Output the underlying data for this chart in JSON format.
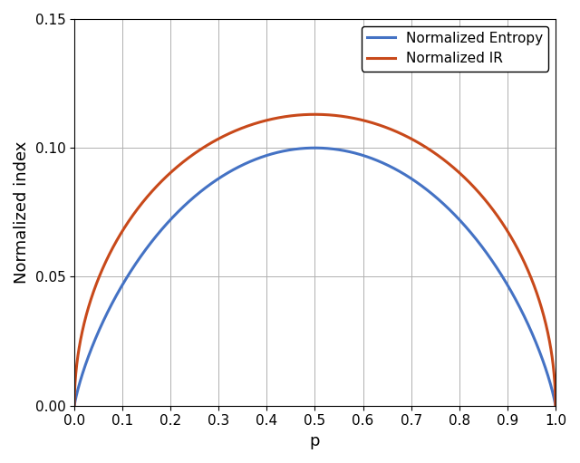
{
  "xlabel": "p",
  "ylabel": "Normalized index",
  "xlim": [
    0,
    1
  ],
  "ylim": [
    0,
    0.15
  ],
  "xticks": [
    0,
    0.1,
    0.2,
    0.3,
    0.4,
    0.5,
    0.6,
    0.7,
    0.8,
    0.9,
    1.0
  ],
  "yticks": [
    0,
    0.05,
    0.1,
    0.15
  ],
  "blue_color": "#4472C4",
  "orange_color": "#C8491A",
  "line_width": 2.2,
  "legend_labels": [
    "Normalized Entropy",
    "Normalized IR"
  ],
  "grid": true,
  "n_points": 2000,
  "N": 10
}
